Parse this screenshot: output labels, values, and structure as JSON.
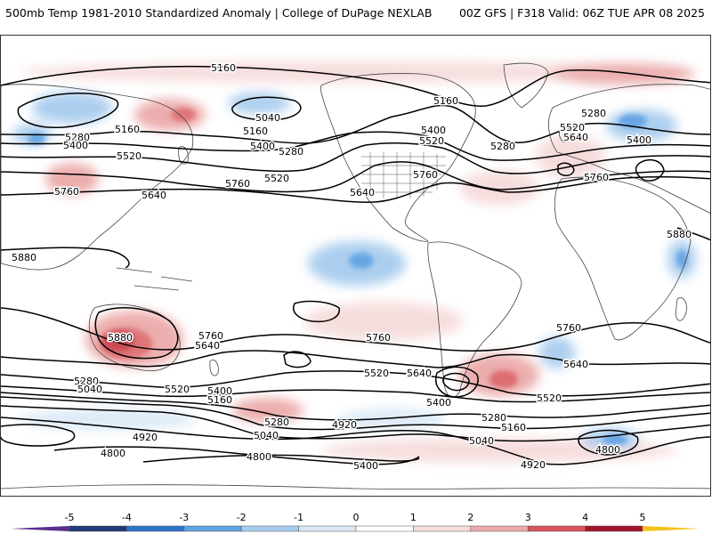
{
  "header": {
    "left": "500mb Temp 1981-2010 Standardized Anomaly | College of DuPage NEXLAB",
    "right": "00Z GFS | F318 Valid: 06Z TUE APR 08 2025"
  },
  "colors": {
    "contour": "#000000",
    "land_border": "#444444"
  },
  "colorbar": {
    "ticks": [
      "-5",
      "-4",
      "-3",
      "-2",
      "-1",
      "0",
      "1",
      "2",
      "3",
      "4",
      "5"
    ],
    "segments": [
      {
        "from": -5,
        "to": -4,
        "color": "#1f3a7a"
      },
      {
        "from": -4,
        "to": -3,
        "color": "#2f73c9"
      },
      {
        "from": -3,
        "to": -2,
        "color": "#5ea2e3"
      },
      {
        "from": -2,
        "to": -1,
        "color": "#a8ccee"
      },
      {
        "from": -1,
        "to": 0,
        "color": "#dbe9f6"
      },
      {
        "from": 0,
        "to": 1,
        "color": "#ffffff"
      },
      {
        "from": 1,
        "to": 2,
        "color": "#f6dcdc"
      },
      {
        "from": 2,
        "to": 3,
        "color": "#eba9a9"
      },
      {
        "from": 3,
        "to": 4,
        "color": "#d8545a"
      },
      {
        "from": 4,
        "to": 5,
        "color": "#a3142a"
      }
    ],
    "low_end_color": "#5a2f8f",
    "high_end_color": "#f2c21b"
  },
  "contour_labels": [
    "5160",
    "5040",
    "5160",
    "5280",
    "5400",
    "5160",
    "5400",
    "5520",
    "5280",
    "5760",
    "5640",
    "5760",
    "5520",
    "5760",
    "5640",
    "5400",
    "5520",
    "5160",
    "5280",
    "5520",
    "5640",
    "5760",
    "5280",
    "5400",
    "5880",
    "5880",
    "5880",
    "5640",
    "5760",
    "5760",
    "5760",
    "5280",
    "5040",
    "5520",
    "5400",
    "5160",
    "5280",
    "5040",
    "4920",
    "4800",
    "4800",
    "5520",
    "5640",
    "5400",
    "5520",
    "4920",
    "5040",
    "5160",
    "5280",
    "5640",
    "4800",
    "4920",
    "5400"
  ],
  "anomalies": [
    {
      "name": "aus-warm-core",
      "sign": 4
    },
    {
      "name": "aus-warm",
      "sign": 2
    },
    {
      "name": "pacific-cold",
      "sign": -3
    },
    {
      "name": "nw-pacific-cold",
      "sign": -2
    },
    {
      "name": "europe-cold",
      "sign": -3
    },
    {
      "name": "s-ocean-cold",
      "sign": -3
    },
    {
      "name": "s-atlantic-warm",
      "sign": 2
    },
    {
      "name": "n-pacific-warm",
      "sign": 2
    },
    {
      "name": "e-africa-cold",
      "sign": -3
    }
  ]
}
